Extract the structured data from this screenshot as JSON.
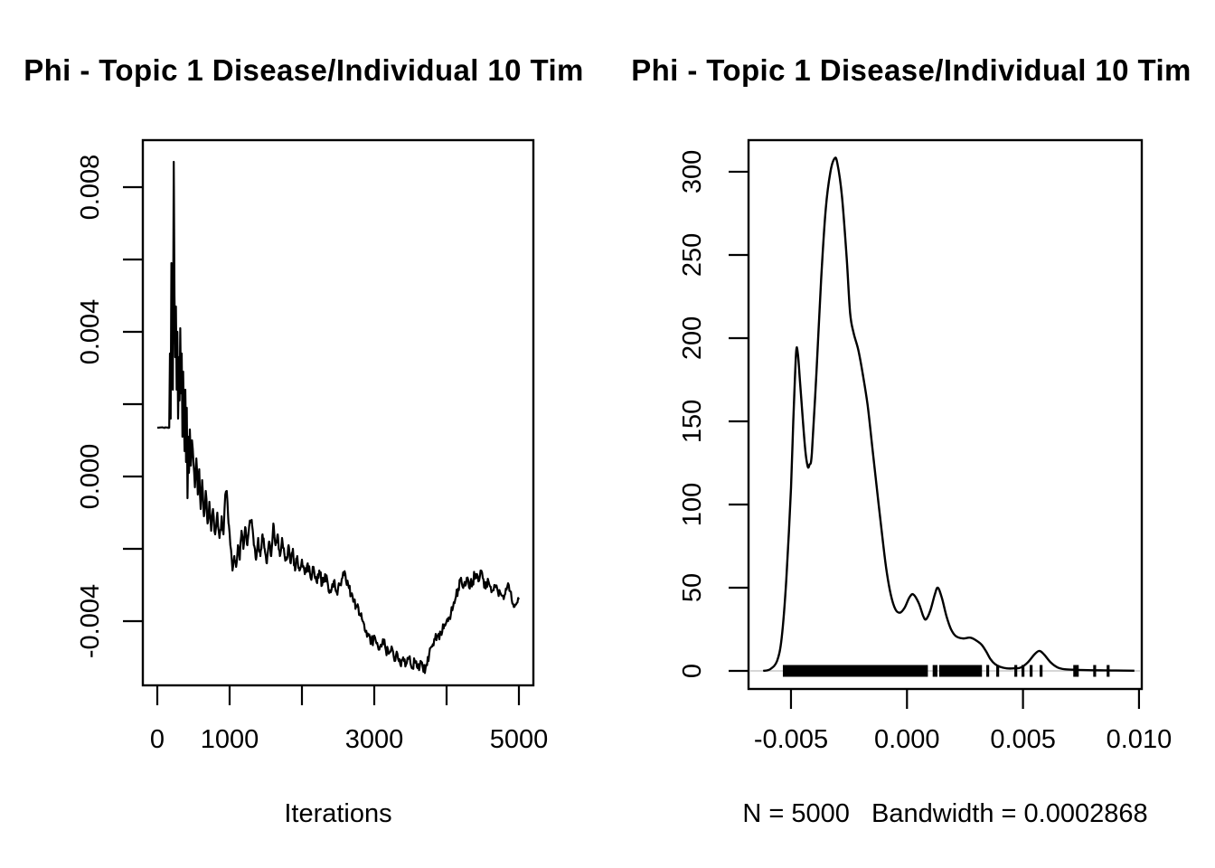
{
  "figure": {
    "background": "#ffffff",
    "foreground": "#000000",
    "baseline_gray": "#c8c8c8"
  },
  "chart_data": [
    {
      "id": "trace",
      "type": "line",
      "title": "Phi - Topic 1 Disease/Individual 10 Tim",
      "xlabel": "Iterations",
      "ylabel": "",
      "xlim": [
        -200,
        5200
      ],
      "ylim": [
        -0.005775,
        0.0093
      ],
      "grid": false,
      "x_ticks": [
        0,
        1000,
        2000,
        3000,
        4000,
        5000
      ],
      "x_tick_labels": [
        "0",
        "1000",
        "",
        "3000",
        "",
        "5000"
      ],
      "y_ticks": [
        0.008,
        0.006,
        0.004,
        0.002,
        0.0,
        -0.002,
        -0.004
      ],
      "y_tick_labels": [
        "0.008",
        "",
        "0.004",
        "",
        "0.000",
        "",
        "-0.004"
      ],
      "series": [
        {
          "name": "phi-trace",
          "waypoints_x": [
            0,
            165,
            175,
            185,
            195,
            205,
            215,
            228,
            238,
            248,
            258,
            268,
            278,
            288,
            298,
            308,
            318,
            328,
            338,
            348,
            358,
            368,
            378,
            388,
            398,
            408,
            418,
            428,
            438,
            450,
            465,
            480,
            500,
            520,
            540,
            560,
            580,
            600,
            620,
            645,
            670,
            695,
            720,
            745,
            770,
            800,
            830,
            860,
            890,
            915,
            940,
            960,
            985,
            1010,
            1040,
            1065,
            1090,
            1115,
            1140,
            1165,
            1190,
            1215,
            1245,
            1275,
            1305,
            1335,
            1365,
            1395,
            1425,
            1455,
            1485,
            1515,
            1545,
            1575,
            1605,
            1635,
            1665,
            1695,
            1725,
            1755,
            1785,
            1815,
            1845,
            1875,
            1905,
            1935,
            1965,
            2000,
            2040,
            2080,
            2120,
            2160,
            2200,
            2240,
            2280,
            2320,
            2360,
            2400,
            2440,
            2480,
            2520,
            2560,
            2600,
            2640,
            2680,
            2720,
            2760,
            2800,
            2840,
            2880,
            2920,
            2960,
            3000,
            3040,
            3080,
            3120,
            3160,
            3200,
            3240,
            3280,
            3320,
            3360,
            3400,
            3440,
            3480,
            3520,
            3560,
            3600,
            3640,
            3680,
            3720,
            3760,
            3800,
            3840,
            3880,
            3920,
            3960,
            4000,
            4040,
            4080,
            4120,
            4160,
            4200,
            4240,
            4280,
            4320,
            4360,
            4400,
            4440,
            4470,
            4500,
            4540,
            4580,
            4620,
            4660,
            4700,
            4740,
            4780,
            4820,
            4860,
            4900,
            4940,
            4970,
            5000
          ],
          "waypoints_y": [
            0.00135,
            0.00135,
            0.0034,
            0.0016,
            0.0059,
            0.004,
            0.0024,
            0.0087,
            0.005,
            0.0033,
            0.0047,
            0.0024,
            0.004,
            0.0016,
            0.0033,
            0.0021,
            0.0041,
            0.0023,
            0.0034,
            0.0011,
            0.0029,
            0.0016,
            0.0007,
            0.0024,
            0.0004,
            0.0019,
            -0.0006,
            0.0011,
            0.0001,
            0.0013,
            0.0003,
            0.001,
            0.0004,
            -0.0003,
            0.0005,
            -0.0005,
            0.0002,
            -0.0009,
            -0.0001,
            -0.0011,
            -0.0004,
            -0.0013,
            -0.0007,
            -0.0015,
            -0.0009,
            -0.0016,
            -0.001,
            -0.0017,
            -0.0011,
            -0.0016,
            -0.0005,
            -0.0004,
            -0.0013,
            -0.0019,
            -0.0026,
            -0.0022,
            -0.0025,
            -0.0019,
            -0.0023,
            -0.0015,
            -0.002,
            -0.0014,
            -0.0019,
            -0.0013,
            -0.0012,
            -0.0019,
            -0.0023,
            -0.0017,
            -0.0022,
            -0.0016,
            -0.002,
            -0.0024,
            -0.0018,
            -0.0022,
            -0.0013,
            -0.0019,
            -0.0016,
            -0.0022,
            -0.0017,
            -0.0021,
            -0.0023,
            -0.0019,
            -0.0024,
            -0.002,
            -0.0026,
            -0.0022,
            -0.0026,
            -0.0023,
            -0.0027,
            -0.0024,
            -0.0028,
            -0.0025,
            -0.0029,
            -0.0026,
            -0.003,
            -0.0027,
            -0.003,
            -0.0032,
            -0.0029,
            -0.0032,
            -0.003,
            -0.0028,
            -0.0027,
            -0.003,
            -0.0033,
            -0.0034,
            -0.0036,
            -0.0038,
            -0.004,
            -0.0043,
            -0.0044,
            -0.0046,
            -0.0044,
            -0.0046,
            -0.0047,
            -0.0045,
            -0.0048,
            -0.0049,
            -0.0047,
            -0.0051,
            -0.0049,
            -0.0052,
            -0.005,
            -0.0052,
            -0.005,
            -0.0053,
            -0.0051,
            -0.0053,
            -0.0051,
            -0.0054,
            -0.0052,
            -0.0049,
            -0.0047,
            -0.0045,
            -0.0044,
            -0.0043,
            -0.0042,
            -0.004,
            -0.0039,
            -0.0037,
            -0.0034,
            -0.0031,
            -0.0028,
            -0.003,
            -0.0028,
            -0.0031,
            -0.0029,
            -0.0027,
            -0.0029,
            -0.0026,
            -0.0028,
            -0.0031,
            -0.0029,
            -0.0032,
            -0.003,
            -0.0031,
            -0.0032,
            -0.0033,
            -0.0031,
            -0.003,
            -0.0034,
            -0.0036,
            -0.0035,
            -0.0034
          ]
        }
      ],
      "noise": {
        "seed": 20240917,
        "step": 10,
        "segments": [
          {
            "from": 0,
            "to": 162,
            "amp": 1e-05
          },
          {
            "from": 162,
            "to": 455,
            "amp": 0.0006
          },
          {
            "from": 455,
            "to": 1000,
            "amp": 0.00022
          },
          {
            "from": 1000,
            "to": 5000,
            "amp": 0.00017
          }
        ]
      }
    },
    {
      "id": "density",
      "type": "line",
      "title": "Phi - Topic 1 Disease/Individual 10 Tim",
      "xlabel": "N = 5000   Bandwidth = 0.0002868",
      "ylabel": "",
      "n": 5000,
      "bandwidth": 0.0002868,
      "xlim": [
        -0.00683,
        0.01012
      ],
      "ylim": [
        -10.87,
        319.0
      ],
      "grid": false,
      "x_ticks": [
        -0.005,
        0.0,
        0.005,
        0.01
      ],
      "x_tick_labels": [
        "-0.005",
        "0.000",
        "0.005",
        "0.010"
      ],
      "y_ticks": [
        0,
        50,
        100,
        150,
        200,
        250,
        300
      ],
      "y_tick_labels": [
        "0",
        "50",
        "100",
        "150",
        "200",
        "250",
        "300"
      ],
      "curve": {
        "x": [
          -0.0062,
          -0.0059,
          -0.0056,
          -0.0054,
          -0.0052,
          -0.005,
          -0.0049,
          -0.00478,
          -0.0047,
          -0.0046,
          -0.0044,
          -0.00428,
          -0.0042,
          -0.0041,
          -0.0039,
          -0.0037,
          -0.0035,
          -0.0033,
          -0.00312,
          -0.003,
          -0.0028,
          -0.0026,
          -0.00245,
          -0.0023,
          -0.0021,
          -0.0019,
          -0.0017,
          -0.0015,
          -0.0013,
          -0.0011,
          -0.0009,
          -0.0007,
          -0.0005,
          -0.0003,
          -0.0001,
          0.0001,
          0.00027,
          0.0005,
          0.0007,
          0.00082,
          0.001,
          0.0012,
          0.00133,
          0.0015,
          0.0017,
          0.0019,
          0.0021,
          0.0024,
          0.0027,
          0.0029,
          0.0032,
          0.0034,
          0.0036,
          0.0038,
          0.004,
          0.0043,
          0.0046,
          0.0049,
          0.0052,
          0.0055,
          0.0057,
          0.0059,
          0.0062,
          0.0065,
          0.0068,
          0.0072,
          0.0076,
          0.008,
          0.0085,
          0.009,
          0.0098
        ],
        "y": [
          0,
          1,
          6,
          20,
          55,
          110,
          150,
          191,
          190,
          172,
          135,
          123,
          124,
          131,
          180,
          235,
          278,
          300,
          308,
          305,
          285,
          248,
          215,
          203,
          193,
          178,
          160,
          135,
          110,
          85,
          62,
          46,
          37,
          35,
          38,
          44,
          46,
          41,
          33,
          31,
          36,
          46,
          50,
          44,
          33,
          25,
          21,
          19.5,
          20,
          19,
          16,
          12,
          7,
          4,
          2.5,
          1.5,
          1.5,
          2,
          5,
          10,
          12,
          10,
          5,
          2,
          1,
          0.7,
          0.5,
          0.4,
          0.3,
          0.2,
          0.1
        ]
      },
      "rug": {
        "band": [
          -0.00535,
          0.0009
        ],
        "ticks": [
          0.00117,
          0.00125,
          0.00145,
          0.00156,
          0.00165,
          0.00176,
          0.00183,
          0.00191,
          0.00199,
          0.00207,
          0.00215,
          0.00223,
          0.00231,
          0.00238,
          0.00246,
          0.00254,
          0.00262,
          0.0027,
          0.00278,
          0.00285,
          0.00293,
          0.00301,
          0.00309,
          0.00317,
          0.00348,
          0.00391,
          0.00469,
          0.005,
          0.00535,
          0.00578,
          0.00723,
          0.00734,
          0.00809,
          0.00867
        ]
      }
    }
  ]
}
